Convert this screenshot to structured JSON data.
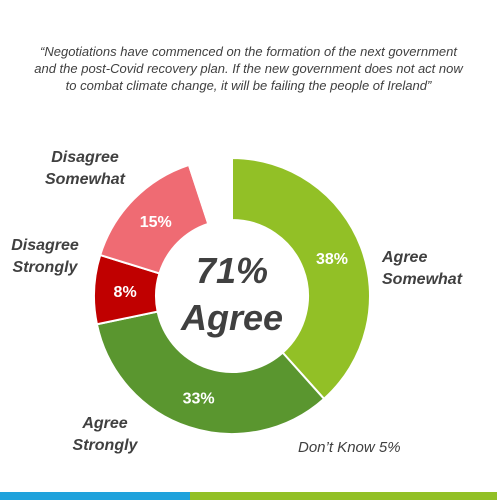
{
  "quote": "“Negotiations have commenced on the formation of the next government and the post-Covid recovery plan. If the new government does not act now to combat climate change, it will be failing the people of Ireland”",
  "center_label": {
    "line1": "71%",
    "line2": "Agree"
  },
  "chart_data": {
    "type": "pie",
    "donut": true,
    "title": "",
    "categories": [
      "Agree Somewhat",
      "Agree Strongly",
      "Disagree Strongly",
      "Disagree Somewhat",
      "Don’t Know"
    ],
    "series": [
      {
        "values": [
          38,
          33,
          8,
          15,
          5
        ]
      }
    ],
    "slices": [
      {
        "label_line1": "Agree",
        "label_line2": "Somewhat",
        "value": 38,
        "value_label": "38%",
        "color": "#92c026"
      },
      {
        "label_line1": "Agree",
        "label_line2": "Strongly",
        "value": 33,
        "value_label": "33%",
        "color": "#5a962f"
      },
      {
        "label_line1": "Disagree",
        "label_line2": "Strongly",
        "value": 8,
        "value_label": "8%",
        "color": "#c00000"
      },
      {
        "label_line1": "Disagree",
        "label_line2": "Somewhat",
        "value": 15,
        "value_label": "15%",
        "color": "#ef6b73"
      },
      {
        "label_line1": "Don’t Know 5%",
        "label_line2": "",
        "value": 5,
        "value_label": "",
        "color": "#ffffff"
      }
    ],
    "legend": "none"
  },
  "colors": {
    "bar_blue": "#1fa2dc",
    "bar_green": "#92c026",
    "label_text": "#404040"
  }
}
